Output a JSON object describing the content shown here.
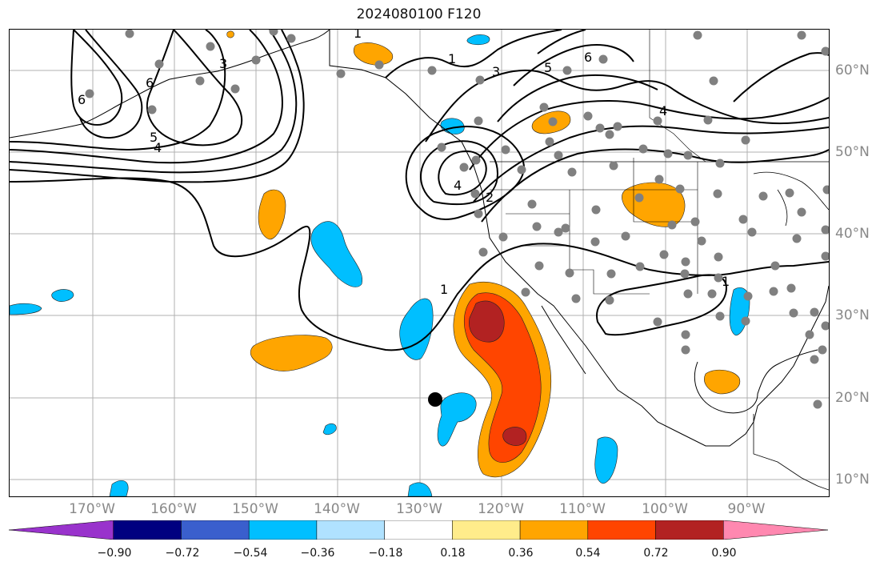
{
  "title": "2024080100 F120",
  "axes": {
    "lon_labels": [
      "170°W",
      "160°W",
      "150°W",
      "140°W",
      "130°W",
      "120°W",
      "110°W",
      "100°W",
      "90°W"
    ],
    "lat_labels": [
      "60°N",
      "50°N",
      "40°N",
      "30°N",
      "20°N",
      "10°N"
    ]
  },
  "contour_labels": [
    "1",
    "1",
    "1",
    "1",
    "2",
    "3",
    "3",
    "4",
    "4",
    "4",
    "5",
    "5",
    "6",
    "6",
    "6"
  ],
  "colorbar": {
    "ticks": [
      "−0.90",
      "−0.72",
      "−0.54",
      "−0.36",
      "−0.18",
      "0.18",
      "0.36",
      "0.54",
      "0.72",
      "0.90"
    ],
    "colors": [
      "#9933cc",
      "#000080",
      "#3a5fcd",
      "#00bfff",
      "#b0e2ff",
      "#ffffff",
      "#ffec8b",
      "#ffa500",
      "#ff4500",
      "#b22222",
      "#ff88b0"
    ]
  },
  "legend_colors": {
    "station_marker": "#808080",
    "storm_marker": "#000000",
    "contour": "#000000",
    "grid": "#b0b0b0"
  }
}
